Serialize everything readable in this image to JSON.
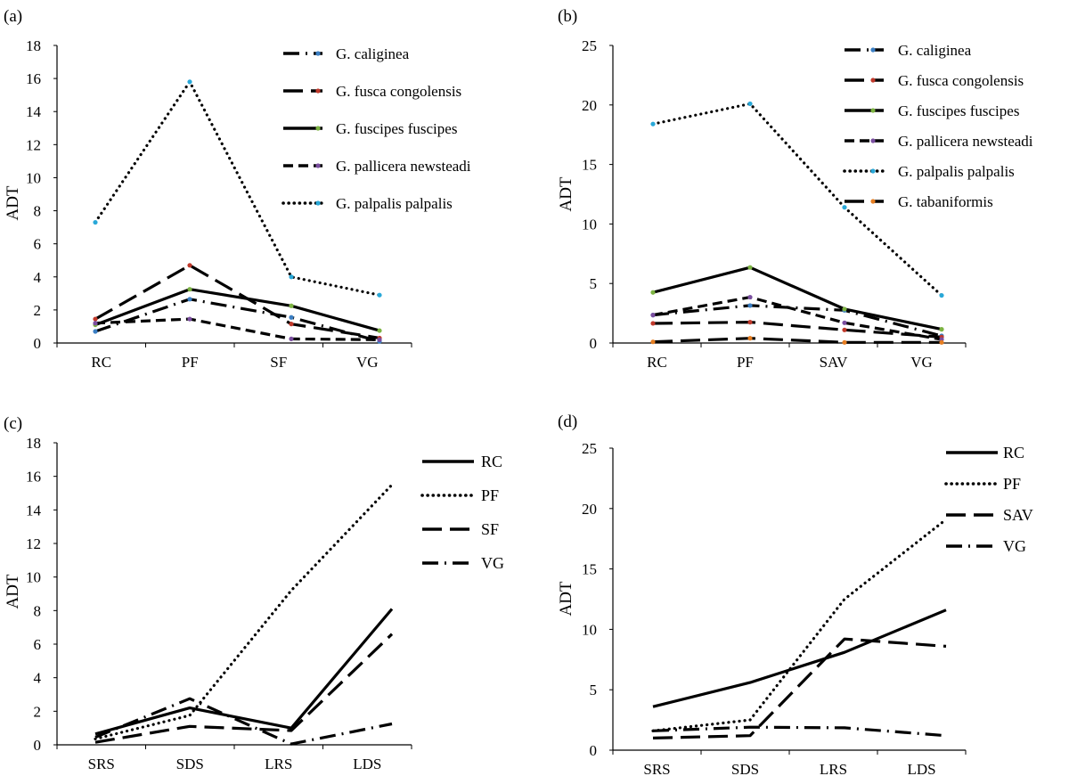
{
  "chart_data": [
    {
      "panel": "(a)",
      "type": "line",
      "ylabel": "ADT",
      "xlabel": "",
      "categories": [
        "RC",
        "PF",
        "SF",
        "VG"
      ],
      "ylim": [
        0,
        18
      ],
      "yticks": [
        0,
        2,
        4,
        6,
        8,
        10,
        12,
        14,
        16,
        18
      ],
      "series": [
        {
          "name": "G. caliginea",
          "values": [
            0.7,
            2.65,
            1.55,
            0.1
          ],
          "style": "dashdot",
          "marker": "#3b7fc4"
        },
        {
          "name": "G. fusca congolensis",
          "values": [
            1.45,
            4.7,
            1.15,
            0.3
          ],
          "style": "longdash",
          "marker": "#c0392b"
        },
        {
          "name": "G. fuscipes fuscipes",
          "values": [
            1.1,
            3.25,
            2.25,
            0.75
          ],
          "style": "solid",
          "marker": "#7cb342"
        },
        {
          "name": "G. pallicera newsteadi",
          "values": [
            1.2,
            1.45,
            0.25,
            0.2
          ],
          "style": "dash",
          "marker": "#7b4fa0"
        },
        {
          "name": "G. palpalis palpalis",
          "values": [
            7.3,
            15.8,
            4.0,
            2.9
          ],
          "style": "dot",
          "marker": "#29a8d8"
        }
      ]
    },
    {
      "panel": "(b)",
      "type": "line",
      "ylabel": "ADT",
      "xlabel": "",
      "categories": [
        "RC",
        "PF",
        "SAV",
        "VG"
      ],
      "ylim": [
        0,
        25
      ],
      "yticks": [
        0,
        5,
        10,
        15,
        20,
        25
      ],
      "series": [
        {
          "name": "G. caliginea",
          "values": [
            2.35,
            3.15,
            2.75,
            0.6
          ],
          "style": "dashdot",
          "marker": "#3b7fc4"
        },
        {
          "name": "G. fusca congolensis",
          "values": [
            1.65,
            1.75,
            1.1,
            0.5
          ],
          "style": "longdash",
          "marker": "#c0392b"
        },
        {
          "name": "G. fuscipes fuscipes",
          "values": [
            4.25,
            6.35,
            2.85,
            1.15
          ],
          "style": "solid",
          "marker": "#7cb342"
        },
        {
          "name": "G. pallicera newsteadi",
          "values": [
            2.35,
            3.85,
            1.7,
            0.3
          ],
          "style": "dash",
          "marker": "#7b4fa0"
        },
        {
          "name": "G. palpalis palpalis",
          "values": [
            18.4,
            20.1,
            11.4,
            4.0
          ],
          "style": "dot",
          "marker": "#29a8d8"
        },
        {
          "name": "G. tabaniformis",
          "values": [
            0.1,
            0.4,
            0.05,
            0.05
          ],
          "style": "longdash",
          "marker": "#e67e22"
        }
      ]
    },
    {
      "panel": "(c)",
      "type": "line",
      "ylabel": "ADT",
      "xlabel": "",
      "categories": [
        "SRS",
        "SDS",
        "LRS",
        "LDS"
      ],
      "ylim": [
        0,
        18
      ],
      "yticks": [
        0,
        2,
        4,
        6,
        8,
        10,
        12,
        14,
        16,
        18
      ],
      "series": [
        {
          "name": "RC",
          "values": [
            0.65,
            2.2,
            1.0,
            8.1
          ],
          "style": "solid"
        },
        {
          "name": "PF",
          "values": [
            0.35,
            1.75,
            9.2,
            15.5
          ],
          "style": "dot"
        },
        {
          "name": "SF",
          "values": [
            0.15,
            1.1,
            0.85,
            6.6
          ],
          "style": "longdash"
        },
        {
          "name": "VG",
          "values": [
            0.45,
            2.75,
            0.05,
            1.25
          ],
          "style": "dashdot"
        }
      ]
    },
    {
      "panel": "(d)",
      "type": "line",
      "ylabel": "ADT",
      "xlabel": "",
      "categories": [
        "SRS",
        "SDS",
        "LRS",
        "LDS"
      ],
      "ylim": [
        0,
        25
      ],
      "yticks": [
        0,
        5,
        10,
        15,
        20,
        25
      ],
      "series": [
        {
          "name": "RC",
          "values": [
            3.6,
            5.6,
            8.1,
            11.6
          ],
          "style": "solid"
        },
        {
          "name": "PF",
          "values": [
            1.6,
            2.5,
            12.5,
            19.1
          ],
          "style": "dot"
        },
        {
          "name": "SAV",
          "values": [
            1.0,
            1.2,
            9.2,
            8.6
          ],
          "style": "longdash"
        },
        {
          "name": "VG",
          "values": [
            1.6,
            1.9,
            1.85,
            1.2
          ],
          "style": "dashdot"
        }
      ]
    }
  ]
}
